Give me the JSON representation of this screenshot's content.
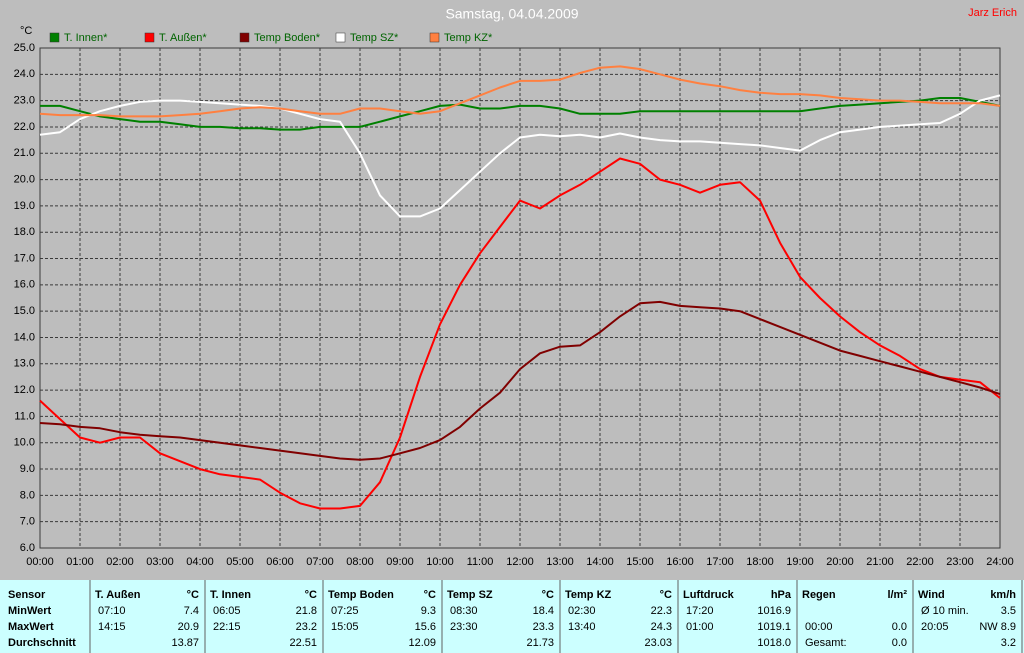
{
  "chart_data": {
    "type": "line",
    "title": "Samstag, 04.04.2009",
    "annotation": "Jarz Erich",
    "ylabel": "°C",
    "x": [
      0,
      0.5,
      1,
      1.5,
      2,
      2.5,
      3,
      3.5,
      4,
      4.5,
      5,
      5.5,
      6,
      6.5,
      7,
      7.5,
      8,
      8.5,
      9,
      9.5,
      10,
      10.5,
      11,
      11.5,
      12,
      12.5,
      13,
      13.5,
      14,
      14.5,
      15,
      15.5,
      16,
      16.5,
      17,
      17.5,
      18,
      18.5,
      19,
      19.5,
      20,
      20.5,
      21,
      21.5,
      22,
      22.5,
      23,
      23.5,
      24
    ],
    "xlim": [
      0,
      24
    ],
    "xticks": [
      {
        "value": 0,
        "label": "00:00"
      },
      {
        "value": 1,
        "label": "01:00"
      },
      {
        "value": 2,
        "label": "02:00"
      },
      {
        "value": 3,
        "label": "03:00"
      },
      {
        "value": 4,
        "label": "04:00"
      },
      {
        "value": 5,
        "label": "05:00"
      },
      {
        "value": 6,
        "label": "06:00"
      },
      {
        "value": 7,
        "label": "07:00"
      },
      {
        "value": 8,
        "label": "08:00"
      },
      {
        "value": 9,
        "label": "09:00"
      },
      {
        "value": 10,
        "label": "10:00"
      },
      {
        "value": 11,
        "label": "11:00"
      },
      {
        "value": 12,
        "label": "12:00"
      },
      {
        "value": 13,
        "label": "13:00"
      },
      {
        "value": 14,
        "label": "14:00"
      },
      {
        "value": 15,
        "label": "15:00"
      },
      {
        "value": 16,
        "label": "16:00"
      },
      {
        "value": 17,
        "label": "17:00"
      },
      {
        "value": 18,
        "label": "18:00"
      },
      {
        "value": 19,
        "label": "19:00"
      },
      {
        "value": 20,
        "label": "20:00"
      },
      {
        "value": 21,
        "label": "21:00"
      },
      {
        "value": 22,
        "label": "22:00"
      },
      {
        "value": 23,
        "label": "23:00"
      },
      {
        "value": 24,
        "label": "24:00"
      }
    ],
    "ylim": [
      6,
      25
    ],
    "yticks": [
      {
        "value": 6,
        "label": "6.0"
      },
      {
        "value": 7,
        "label": "7.0"
      },
      {
        "value": 8,
        "label": "8.0"
      },
      {
        "value": 9,
        "label": "9.0"
      },
      {
        "value": 10,
        "label": "10.0"
      },
      {
        "value": 11,
        "label": "11.0"
      },
      {
        "value": 12,
        "label": "12.0"
      },
      {
        "value": 13,
        "label": "13.0"
      },
      {
        "value": 14,
        "label": "14.0"
      },
      {
        "value": 15,
        "label": "15.0"
      },
      {
        "value": 16,
        "label": "16.0"
      },
      {
        "value": 17,
        "label": "17.0"
      },
      {
        "value": 18,
        "label": "18.0"
      },
      {
        "value": 19,
        "label": "19.0"
      },
      {
        "value": 20,
        "label": "20.0"
      },
      {
        "value": 21,
        "label": "21.0"
      },
      {
        "value": 22,
        "label": "22.0"
      },
      {
        "value": 23,
        "label": "23.0"
      },
      {
        "value": 24,
        "label": "24.0"
      },
      {
        "value": 25,
        "label": "25.0"
      }
    ],
    "grid": true,
    "series": [
      {
        "name": "T. Innen*",
        "color": "#008000",
        "values": [
          22.8,
          22.8,
          22.6,
          22.4,
          22.3,
          22.2,
          22.2,
          22.1,
          22.0,
          22.0,
          21.95,
          21.95,
          21.9,
          21.9,
          22.0,
          22.0,
          22.0,
          22.2,
          22.4,
          22.6,
          22.8,
          22.85,
          22.7,
          22.7,
          22.8,
          22.8,
          22.7,
          22.5,
          22.5,
          22.5,
          22.6,
          22.6,
          22.6,
          22.6,
          22.6,
          22.6,
          22.6,
          22.6,
          22.6,
          22.7,
          22.8,
          22.85,
          22.9,
          22.95,
          23.0,
          23.1,
          23.1,
          22.95,
          22.8
        ]
      },
      {
        "name": "T. Außen*",
        "color": "#ff0000",
        "values": [
          11.6,
          10.9,
          10.2,
          10.0,
          10.2,
          10.2,
          9.6,
          9.3,
          9.0,
          8.8,
          8.7,
          8.6,
          8.1,
          7.7,
          7.5,
          7.5,
          7.6,
          8.5,
          10.2,
          12.5,
          14.5,
          16.0,
          17.2,
          18.2,
          19.2,
          18.9,
          19.4,
          19.8,
          20.3,
          20.8,
          20.6,
          20.0,
          19.8,
          19.5,
          19.8,
          19.9,
          19.2,
          17.6,
          16.3,
          15.5,
          14.8,
          14.2,
          13.7,
          13.3,
          12.8,
          12.5,
          12.4,
          12.3,
          11.7
        ]
      },
      {
        "name": "Temp Boden*",
        "color": "#800000",
        "values": [
          10.75,
          10.7,
          10.6,
          10.55,
          10.4,
          10.3,
          10.25,
          10.2,
          10.1,
          10.0,
          9.9,
          9.8,
          9.7,
          9.6,
          9.5,
          9.4,
          9.35,
          9.4,
          9.6,
          9.8,
          10.1,
          10.6,
          11.3,
          11.9,
          12.8,
          13.4,
          13.65,
          13.7,
          14.2,
          14.8,
          15.3,
          15.35,
          15.2,
          15.15,
          15.1,
          15.0,
          14.7,
          14.4,
          14.1,
          13.8,
          13.5,
          13.3,
          13.1,
          12.9,
          12.7,
          12.5,
          12.3,
          12.1,
          11.85
        ]
      },
      {
        "name": "Temp SZ*",
        "color": "#ffffff",
        "values": [
          21.7,
          21.8,
          22.3,
          22.6,
          22.8,
          22.95,
          23.0,
          23.0,
          22.95,
          22.9,
          22.85,
          22.8,
          22.7,
          22.5,
          22.3,
          22.2,
          21.0,
          19.4,
          18.6,
          18.6,
          18.9,
          19.6,
          20.3,
          21.0,
          21.6,
          21.7,
          21.65,
          21.7,
          21.6,
          21.75,
          21.6,
          21.5,
          21.45,
          21.45,
          21.4,
          21.35,
          21.3,
          21.2,
          21.1,
          21.5,
          21.8,
          21.9,
          22.0,
          22.05,
          22.1,
          22.15,
          22.5,
          23.0,
          23.2
        ]
      },
      {
        "name": "Temp KZ*",
        "color": "#ff8040",
        "values": [
          22.5,
          22.45,
          22.45,
          22.45,
          22.4,
          22.4,
          22.4,
          22.45,
          22.5,
          22.6,
          22.7,
          22.75,
          22.7,
          22.6,
          22.5,
          22.5,
          22.7,
          22.7,
          22.6,
          22.5,
          22.6,
          22.9,
          23.2,
          23.5,
          23.75,
          23.75,
          23.8,
          24.05,
          24.25,
          24.3,
          24.2,
          24.0,
          23.8,
          23.65,
          23.55,
          23.4,
          23.3,
          23.25,
          23.25,
          23.2,
          23.1,
          23.05,
          23.0,
          23.0,
          22.95,
          22.9,
          22.9,
          22.9,
          22.8
        ]
      }
    ]
  },
  "table": {
    "row_labels": [
      "Sensor",
      "MinWert",
      "MaxWert",
      "Durchschnitt"
    ],
    "groups": [
      {
        "name": "T. Außen",
        "unit": "°C",
        "rows": [
          [
            "07:10",
            "7.4"
          ],
          [
            "14:15",
            "20.9"
          ],
          [
            "13.87"
          ]
        ]
      },
      {
        "name": "T. Innen",
        "unit": "°C",
        "rows": [
          [
            "06:05",
            "21.8"
          ],
          [
            "22:15",
            "23.2"
          ],
          [
            "22.51"
          ]
        ]
      },
      {
        "name": "Temp Boden",
        "unit": "°C",
        "rows": [
          [
            "07:25",
            "9.3"
          ],
          [
            "15:05",
            "15.6"
          ],
          [
            "12.09"
          ]
        ]
      },
      {
        "name": "Temp SZ",
        "unit": "°C",
        "rows": [
          [
            "08:30",
            "18.4"
          ],
          [
            "23:30",
            "23.3"
          ],
          [
            "21.73"
          ]
        ]
      },
      {
        "name": "Temp KZ",
        "unit": "°C",
        "rows": [
          [
            "02:30",
            "22.3"
          ],
          [
            "13:40",
            "24.3"
          ],
          [
            "23.03"
          ]
        ]
      },
      {
        "name": "Luftdruck",
        "unit": "hPa",
        "rows": [
          [
            "17:20",
            "1016.9"
          ],
          [
            "01:00",
            "1019.1"
          ],
          [
            "1018.0"
          ]
        ]
      },
      {
        "name": "Regen",
        "unit": "l/m²",
        "rows": [
          null,
          [
            "00:00",
            "0.0"
          ],
          [
            "Gesamt:",
            "0.0"
          ]
        ]
      },
      {
        "name": "Wind",
        "unit": "km/h",
        "rows": [
          [
            "Ø 10 min.",
            "3.5"
          ],
          [
            "20:05",
            "NW 8.9"
          ],
          [
            "3.2"
          ]
        ]
      }
    ]
  }
}
